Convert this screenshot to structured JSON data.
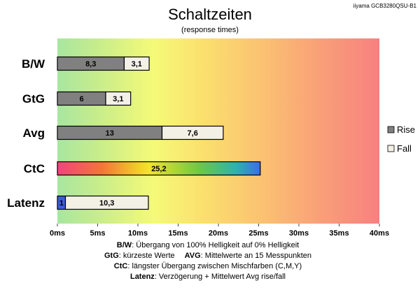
{
  "chart_data": {
    "type": "bar",
    "orientation": "horizontal",
    "stacked": true,
    "title": "Schaltzeiten",
    "subtitle": "(response times)",
    "model": "iiyama GCB3280QSU-B1",
    "categories": [
      "B/W",
      "GtG",
      "Avg",
      "CtC",
      "Latenz"
    ],
    "series": [
      {
        "name": "Rise",
        "values": [
          8.3,
          6,
          13,
          25.2,
          1
        ],
        "color": "#808080"
      },
      {
        "name": "Fall",
        "values": [
          3.1,
          3.1,
          7.6,
          null,
          10.3
        ],
        "color": "#f3f0e6"
      }
    ],
    "value_labels": {
      "rise": [
        "8,3",
        "6",
        "13",
        "25,2",
        "1"
      ],
      "fall": [
        "3,1",
        "3,1",
        "7,6",
        "",
        "10,3"
      ]
    },
    "special_colors": {
      "ctc_bar": "rainbow gradient",
      "latenz_rise": "#3a5ed8"
    },
    "xlim": [
      0,
      40
    ],
    "xticks": [
      0,
      5,
      10,
      15,
      20,
      25,
      30,
      35,
      40
    ],
    "xtick_labels": [
      "0ms",
      "5ms",
      "10ms",
      "15ms",
      "20ms",
      "25ms",
      "30ms",
      "35ms",
      "40ms"
    ],
    "background": "gradient green to yellow to red",
    "legend_position": "right",
    "grid": false
  },
  "footnotes": [
    {
      "label": "B/W",
      "text": ":  Übergang von 100% Helligkeit auf 0% Helligkeit"
    },
    {
      "label": "GtG",
      "text": ": kürzeste  Werte",
      "label2": "AVG",
      "text2": ": Mittelwerte  an 15 Messpunkten"
    },
    {
      "label": "CtC",
      "text": ": längster Übergang  zwischen Mischfarben (C,M,Y)"
    },
    {
      "label": "Latenz",
      "text": ": Verzögerung  + Mittelwert  Avg rise/fall"
    }
  ]
}
